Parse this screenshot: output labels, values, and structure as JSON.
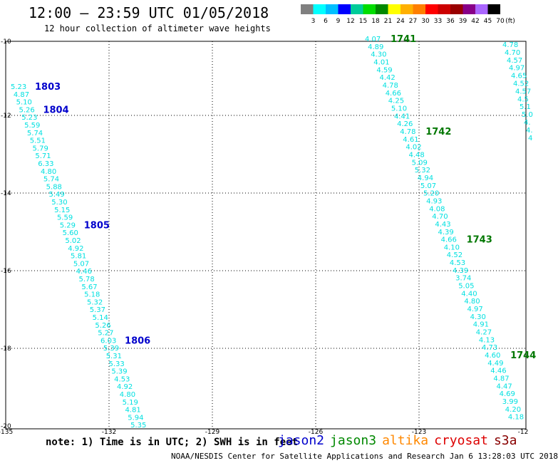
{
  "header": {
    "title": "12:00 – 23:59 UTC 01/05/2018",
    "subtitle": "12 hour collection of altimeter wave heights"
  },
  "legend": {
    "colors": [
      "#808080",
      "#00ffff",
      "#00bfff",
      "#0000ff",
      "#00cc99",
      "#00dd00",
      "#008800",
      "#ffff00",
      "#ffb000",
      "#ff7f00",
      "#ff0000",
      "#cc0000",
      "#990000",
      "#880088",
      "#aa66ff",
      "#000000"
    ],
    "labels": [
      "3",
      "6",
      "9",
      "12",
      "15",
      "18",
      "21",
      "24",
      "27",
      "30",
      "33",
      "36",
      "39",
      "42",
      "45",
      "70",
      "(ft)"
    ]
  },
  "map": {
    "lat_labels": [
      "-10",
      "-12",
      "-14",
      "-16",
      "-18",
      "-20"
    ],
    "lon_labels": [
      "-135",
      "-132",
      "-129",
      "-126",
      "-123",
      "-12"
    ],
    "value_color": "#00e0e0"
  },
  "tracks": [
    {
      "satellite": "jason2",
      "color": "#0000cc",
      "values": [
        "5.23",
        "4.87",
        "5.10",
        "5.26",
        "5.23",
        "5.59",
        "5.74",
        "5.51",
        "5.79",
        "5.71",
        "6.33",
        "4.80",
        "5.74",
        "5.88",
        "5.49",
        "5.30",
        "5.15",
        "5.59",
        "5.29",
        "5.60",
        "5.02",
        "4.92",
        "5.81",
        "5.07",
        "4.46",
        "5.78",
        "5.67",
        "5.18",
        "5.32",
        "5.37",
        "5.14",
        "5.26",
        "5.27",
        "6.03",
        "5.39",
        "5.31",
        "5.33",
        "5.39",
        "4.53",
        "4.92",
        "4.80",
        "5.19",
        "4.81",
        "5.94",
        "5.35"
      ],
      "times": [
        {
          "label": "1803",
          "index": 0
        },
        {
          "label": "1804",
          "index": 3
        },
        {
          "label": "1805",
          "index": 18
        },
        {
          "label": "1806",
          "index": 33
        }
      ]
    },
    {
      "satellite": "jason3",
      "color": "#007700",
      "values": [
        "4.07",
        "4.89",
        "4.30",
        "4.01",
        "4.59",
        "4.42",
        "4.78",
        "4.66",
        "4.25",
        "5.10",
        "4.41",
        "4.26",
        "4.78",
        "4.61",
        "4.02",
        "4.48",
        "5.09",
        "5.32",
        "4.94",
        "5.07",
        "5.20",
        "4.93",
        "4.08",
        "4.70",
        "4.43",
        "4.39",
        "4.66",
        "4.10",
        "4.52",
        "4.53",
        "4.39",
        "3.74",
        "5.05",
        "4.40",
        "4.80",
        "4.97",
        "4.30",
        "4.91",
        "4.27",
        "4.13",
        "4.73",
        "4.60",
        "4.49",
        "4.46",
        "4.87",
        "4.47",
        "4.69",
        "3.99",
        "4.20",
        "4.18"
      ],
      "times": [
        {
          "label": "1741",
          "index": 0
        },
        {
          "label": "1742",
          "index": 12
        },
        {
          "label": "1743",
          "index": 26
        },
        {
          "label": "1744",
          "index": 41
        }
      ]
    },
    {
      "satellite": "right-edge",
      "color": "#007700",
      "values": [
        "4.78",
        "4.70",
        "4.57",
        "4.97",
        "4.65",
        "4.52",
        "4.57",
        "4.5",
        "5.1",
        "5.0",
        "4.",
        "4.",
        "4"
      ],
      "times": []
    }
  ],
  "footer": {
    "note": "note: 1) Time is in UTC; 2) SWH is in feet",
    "satellites": [
      {
        "name": "jason2",
        "color": "#0000cc"
      },
      {
        "name": "jason3",
        "color": "#008800"
      },
      {
        "name": "altika",
        "color": "#ff8800"
      },
      {
        "name": "cryosat",
        "color": "#dd0000"
      },
      {
        "name": "s3a",
        "color": "#880000"
      }
    ],
    "credit": "NOAA/NESDIS Center for Satellite Applications and Research    Jan  6 13:28:03 UTC 2018"
  }
}
